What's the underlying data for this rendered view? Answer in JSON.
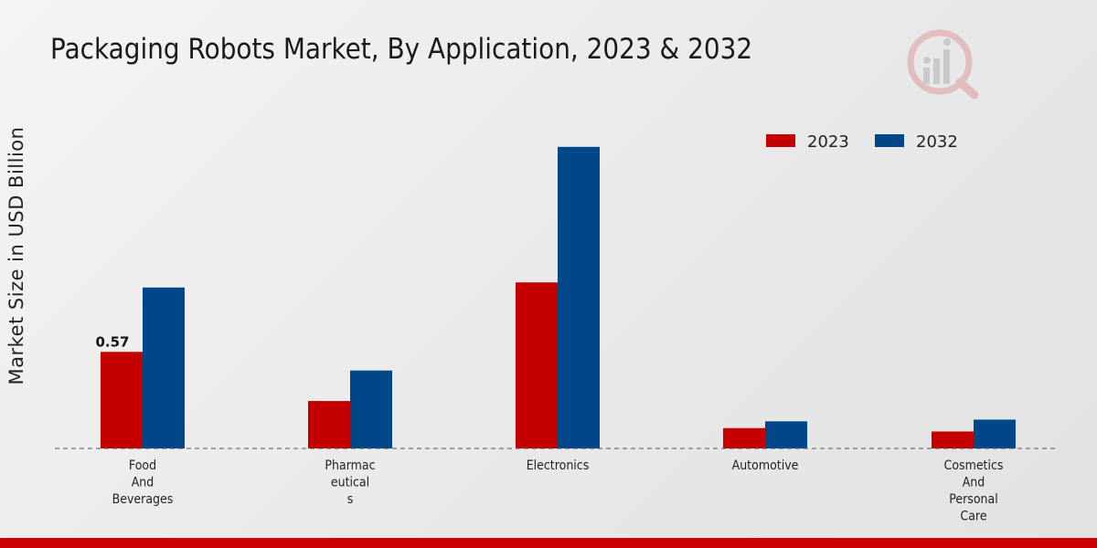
{
  "title": "Packaging Robots Market, By Application, 2023 & 2032",
  "colors": {
    "series_2023": "#c40000",
    "series_2032": "#00478a",
    "accent_bar": "#cc0000"
  },
  "logo_icon": "market-research-logo-icon",
  "chart_data": {
    "type": "bar",
    "title": "Packaging Robots Market, By Application, 2023 & 2032",
    "xlabel": "",
    "ylabel": "Market Size in USD Billion",
    "categories": [
      [
        "Food",
        "And",
        "Beverages"
      ],
      [
        "Pharmac",
        "eutical",
        "s"
      ],
      [
        "Electronics"
      ],
      [
        "Automotive"
      ],
      [
        "Cosmetics",
        "And",
        "Personal",
        "Care"
      ]
    ],
    "series": [
      {
        "name": "2023",
        "values": [
          0.57,
          0.28,
          0.98,
          0.12,
          0.1
        ]
      },
      {
        "name": "2032",
        "values": [
          0.95,
          0.46,
          1.78,
          0.16,
          0.17
        ]
      }
    ],
    "data_labels": [
      {
        "series": 0,
        "index": 0,
        "text": "0.57"
      }
    ],
    "ylim": [
      0,
      2.0
    ],
    "grid": false,
    "legend_position": "top-right"
  }
}
